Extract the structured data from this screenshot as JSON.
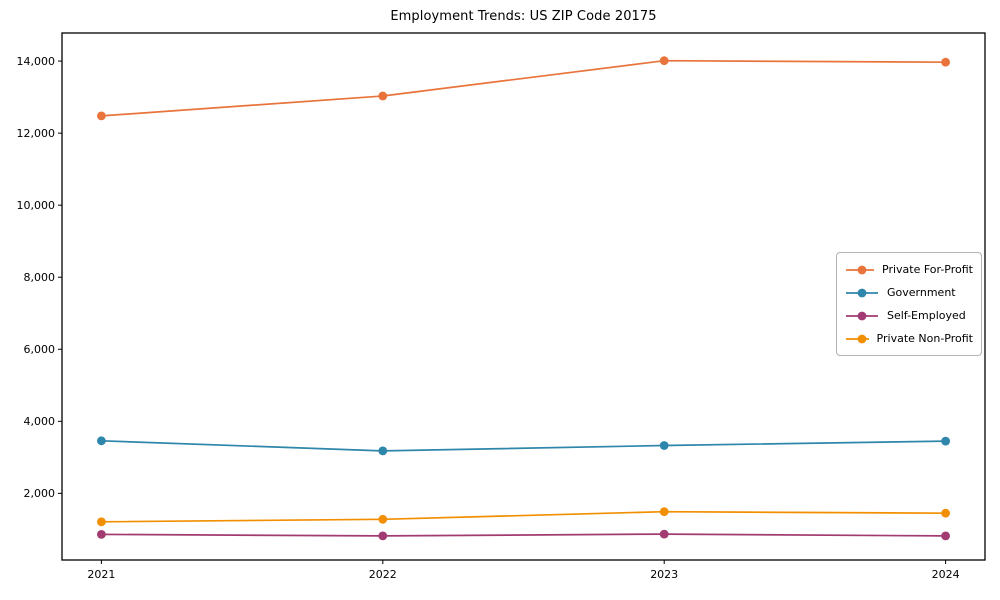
{
  "chart_data": {
    "type": "line",
    "title": "Employment Trends: US ZIP Code 20175",
    "xlabel": "",
    "ylabel": "",
    "grid": false,
    "legend_position": "center right",
    "x": [
      2021,
      2022,
      2023,
      2024
    ],
    "x_tick_labels": [
      "2021",
      "2022",
      "2023",
      "2024"
    ],
    "yticks": [
      2000,
      4000,
      6000,
      8000,
      10000,
      12000,
      14000
    ],
    "ytick_labels": [
      "2,000",
      "4,000",
      "6,000",
      "8,000",
      "10,000",
      "12,000",
      "14,000"
    ],
    "xlim": [
      2020.86,
      2024.14
    ],
    "ylim": [
      150,
      14780
    ],
    "series": [
      {
        "name": "Private For-Profit",
        "color": "#E8743B",
        "values": [
          12480,
          13030,
          14010,
          13970
        ]
      },
      {
        "name": "Government",
        "color": "#2E86AB",
        "values": [
          3460,
          3180,
          3330,
          3450
        ]
      },
      {
        "name": "Self-Employed",
        "color": "#A23B72",
        "values": [
          860,
          820,
          870,
          820
        ]
      },
      {
        "name": "Private Non-Profit",
        "color": "#F18F01",
        "values": [
          1210,
          1280,
          1490,
          1450
        ]
      }
    ]
  },
  "colors": {
    "spine": "#000000",
    "tick_label": "#000000",
    "legend_border": "#b3b3b3",
    "background": "#ffffff"
  }
}
